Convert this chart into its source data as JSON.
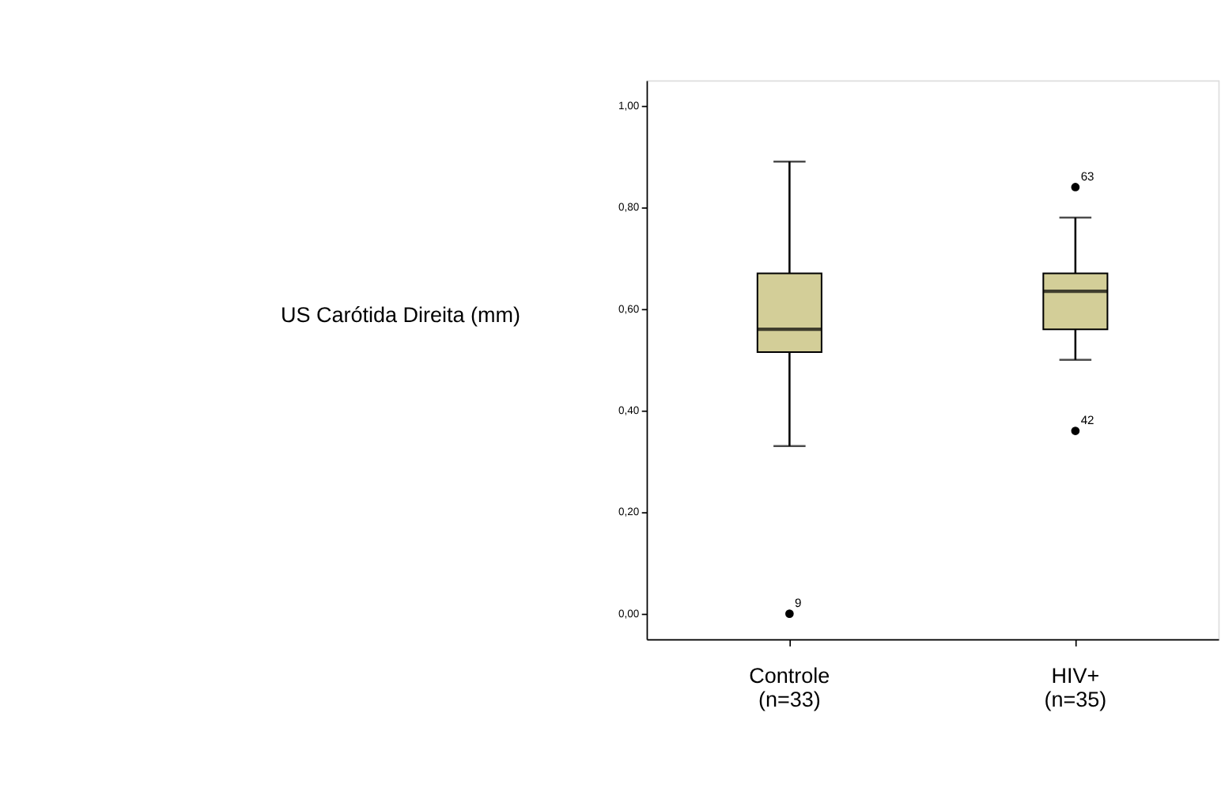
{
  "chart_data": {
    "type": "box",
    "ylabel": "US Carótida Direita (mm)",
    "categories": [
      "Controle\n(n=33)",
      "HIV+\n(n=35)"
    ],
    "color": "#d3ce98",
    "boxes": [
      {
        "low": 0.33,
        "q1": 0.515,
        "median": 0.56,
        "q3": 0.67,
        "high": 0.89,
        "outliers": [
          0.0
        ]
      },
      {
        "low": 0.5,
        "q1": 0.56,
        "median": 0.635,
        "q3": 0.67,
        "high": 0.78,
        "outliers": [
          0.84,
          0.36
        ]
      }
    ],
    "annotations": [
      "9",
      "63",
      "42"
    ],
    "ylim": [
      -0.05,
      1.05
    ],
    "yticks": [
      {
        "value": 0,
        "label": "0,00"
      },
      {
        "value": 0.2,
        "label": "0,20"
      },
      {
        "value": 0.4,
        "label": "0,40"
      },
      {
        "value": 0.6,
        "label": "0,60"
      },
      {
        "value": 0.8,
        "label": "0,80"
      },
      {
        "value": 1.0,
        "label": "1,00"
      }
    ],
    "grid": false
  }
}
